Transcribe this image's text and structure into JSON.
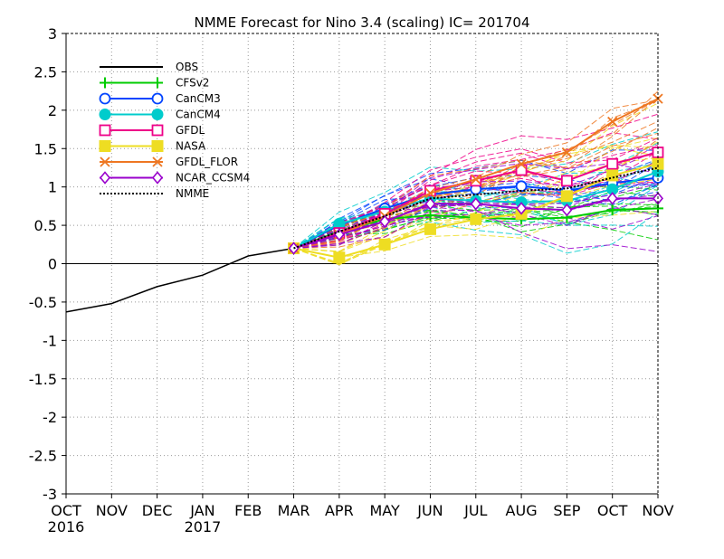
{
  "chart_data": {
    "type": "line",
    "title": "NMME Forecast for Nino 3.4 (scaling) IC= 201704",
    "xlabel": "",
    "ylabel": "",
    "ylim": [
      -3,
      3
    ],
    "y_ticks": [
      "3",
      "2.5",
      "2",
      "1.5",
      "1",
      "0.5",
      "0",
      "-0.5",
      "-1",
      "-1.5",
      "-2",
      "-2.5",
      "-3"
    ],
    "x_ticks": [
      "OCT",
      "NOV",
      "DEC",
      "JAN",
      "FEB",
      "MAR",
      "APR",
      "MAY",
      "JUN",
      "JUL",
      "AUG",
      "SEP",
      "OCT",
      "NOV"
    ],
    "x_year_labels": [
      {
        "index": 0,
        "label": "2016"
      },
      {
        "index": 3,
        "label": "2017"
      }
    ],
    "grid": true,
    "legend_position": "top-left",
    "series": [
      {
        "name": "OBS",
        "color": "#000000",
        "marker": "none",
        "style": "solid",
        "start": 0,
        "values": [
          -0.63,
          -0.52,
          -0.3,
          -0.15,
          0.1,
          0.2
        ]
      },
      {
        "name": "CFSv2",
        "color": "#00cc00",
        "marker": "plus",
        "style": "solid",
        "start": 5,
        "values": [
          0.2,
          0.42,
          0.58,
          0.63,
          0.6,
          0.58,
          0.6,
          0.7,
          0.72
        ]
      },
      {
        "name": "CanCM3",
        "color": "#0044ff",
        "marker": "circle",
        "style": "solid",
        "start": 5,
        "values": [
          0.2,
          0.5,
          0.72,
          0.9,
          0.97,
          1.01,
          0.95,
          1.05,
          1.12
        ]
      },
      {
        "name": "CanCM4",
        "color": "#00cccc",
        "marker": "filled-circle",
        "style": "solid",
        "start": 5,
        "values": [
          0.2,
          0.52,
          0.68,
          0.85,
          0.82,
          0.8,
          0.82,
          0.97,
          1.2
        ]
      },
      {
        "name": "GFDL",
        "color": "#ee0088",
        "marker": "square",
        "style": "solid",
        "start": 5,
        "values": [
          0.2,
          0.4,
          0.65,
          0.95,
          1.08,
          1.22,
          1.08,
          1.3,
          1.45
        ]
      },
      {
        "name": "NASA",
        "color": "#eedd22",
        "marker": "filled-square",
        "style": "solid",
        "start": 5,
        "values": [
          0.2,
          0.08,
          0.25,
          0.45,
          0.58,
          0.65,
          0.88,
          1.15,
          1.3
        ]
      },
      {
        "name": "GFDL_FLOR",
        "color": "#ee7722",
        "marker": "x",
        "style": "solid",
        "start": 5,
        "values": [
          0.2,
          0.38,
          0.62,
          0.92,
          1.1,
          1.3,
          1.45,
          1.85,
          2.15
        ]
      },
      {
        "name": "NCAR_CCSM4",
        "color": "#9900cc",
        "marker": "diamond",
        "style": "solid",
        "start": 5,
        "values": [
          0.2,
          0.38,
          0.55,
          0.78,
          0.78,
          0.72,
          0.7,
          0.85,
          0.85
        ]
      },
      {
        "name": "NMME",
        "color": "#000000",
        "marker": "none",
        "style": "dotted",
        "start": 5,
        "values": [
          0.2,
          0.42,
          0.62,
          0.85,
          0.9,
          0.95,
          0.98,
          1.12,
          1.25
        ]
      }
    ]
  }
}
